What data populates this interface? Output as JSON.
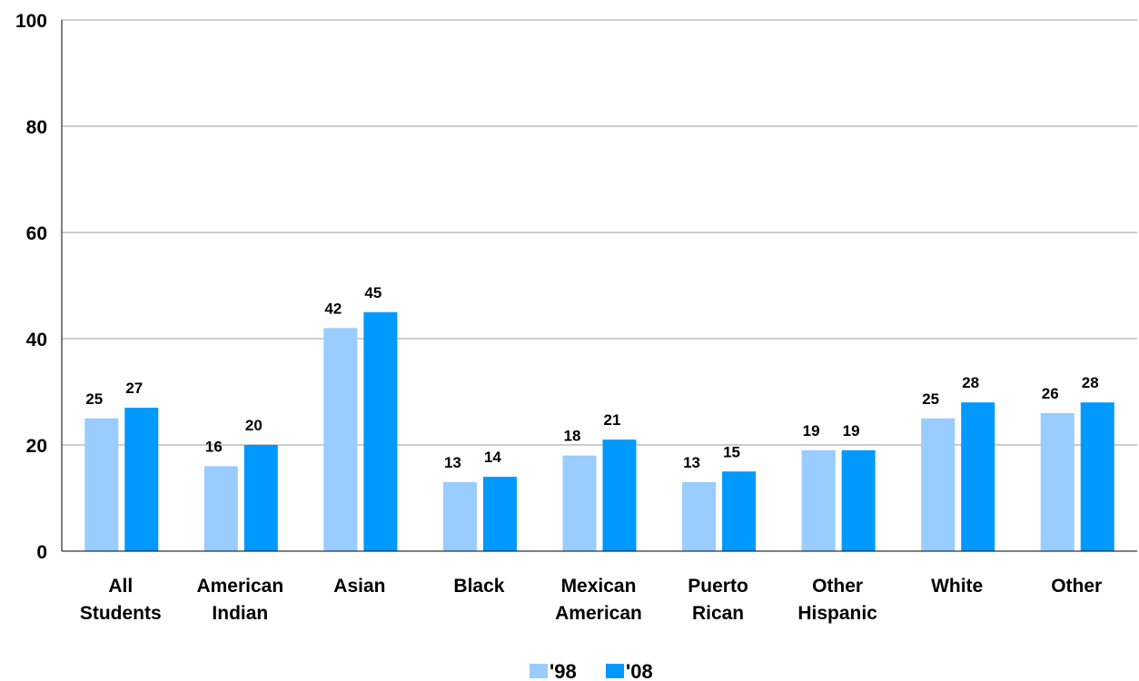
{
  "chart_data": {
    "type": "bar",
    "title": "",
    "xlabel": "",
    "ylabel": "",
    "ylim": [
      0,
      100
    ],
    "yticks": [
      0,
      20,
      40,
      60,
      80,
      100
    ],
    "grid": true,
    "legend_position": "bottom-center",
    "categories": [
      [
        "All",
        "Students"
      ],
      [
        "American",
        "Indian"
      ],
      [
        "Asian"
      ],
      [
        "Black"
      ],
      [
        "Mexican",
        "American"
      ],
      [
        "Puerto",
        "Rican"
      ],
      [
        "Other",
        "Hispanic"
      ],
      [
        "White"
      ],
      [
        "Other"
      ]
    ],
    "series": [
      {
        "name": "'98",
        "color": "#99ccff",
        "values": [
          25,
          16,
          42,
          13,
          18,
          13,
          19,
          25,
          26
        ]
      },
      {
        "name": "'08",
        "color": "#0099ff",
        "values": [
          27,
          20,
          45,
          14,
          21,
          15,
          19,
          28,
          28
        ]
      }
    ]
  }
}
